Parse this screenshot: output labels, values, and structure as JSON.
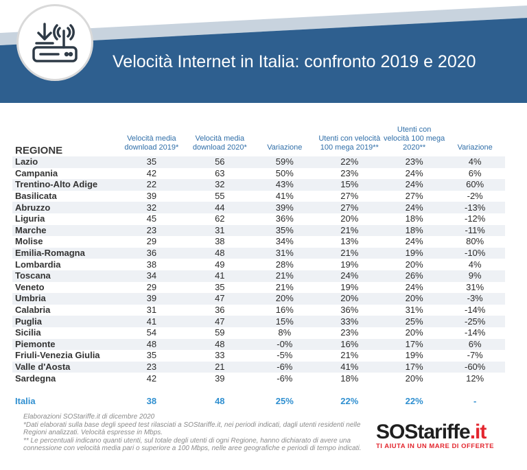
{
  "title": "Velocità Internet in Italia: confronto 2019 e 2020",
  "headers": {
    "region": "REGIONE",
    "dl2019": "Velocità media download 2019*",
    "dl2020": "Velocità media download 2020*",
    "var1": "Variazione",
    "u2019": "Utenti con velocità 100 mega 2019**",
    "u2020": "Utenti con velocità 100 mega 2020**",
    "var2": "Variazione"
  },
  "rows": [
    {
      "region": "Lazio",
      "dl2019": "35",
      "dl2020": "56",
      "var1": "59%",
      "u2019": "22%",
      "u2020": "23%",
      "var2": "4%"
    },
    {
      "region": "Campania",
      "dl2019": "42",
      "dl2020": "63",
      "var1": "50%",
      "u2019": "23%",
      "u2020": "24%",
      "var2": "6%"
    },
    {
      "region": "Trentino-Alto Adige",
      "dl2019": "22",
      "dl2020": "32",
      "var1": "43%",
      "u2019": "15%",
      "u2020": "24%",
      "var2": "60%"
    },
    {
      "region": "Basilicata",
      "dl2019": "39",
      "dl2020": "55",
      "var1": "41%",
      "u2019": "27%",
      "u2020": "27%",
      "var2": "-2%"
    },
    {
      "region": "Abruzzo",
      "dl2019": "32",
      "dl2020": "44",
      "var1": "39%",
      "u2019": "27%",
      "u2020": "24%",
      "var2": "-13%"
    },
    {
      "region": "Liguria",
      "dl2019": "45",
      "dl2020": "62",
      "var1": "36%",
      "u2019": "20%",
      "u2020": "18%",
      "var2": "-12%"
    },
    {
      "region": "Marche",
      "dl2019": "23",
      "dl2020": "31",
      "var1": "35%",
      "u2019": "21%",
      "u2020": "18%",
      "var2": "-11%"
    },
    {
      "region": "Molise",
      "dl2019": "29",
      "dl2020": "38",
      "var1": "34%",
      "u2019": "13%",
      "u2020": "24%",
      "var2": "80%"
    },
    {
      "region": "Emilia-Romagna",
      "dl2019": "36",
      "dl2020": "48",
      "var1": "31%",
      "u2019": "21%",
      "u2020": "19%",
      "var2": "-10%"
    },
    {
      "region": "Lombardia",
      "dl2019": "38",
      "dl2020": "49",
      "var1": "28%",
      "u2019": "19%",
      "u2020": "20%",
      "var2": "4%"
    },
    {
      "region": "Toscana",
      "dl2019": "34",
      "dl2020": "41",
      "var1": "21%",
      "u2019": "24%",
      "u2020": "26%",
      "var2": "9%"
    },
    {
      "region": "Veneto",
      "dl2019": "29",
      "dl2020": "35",
      "var1": "21%",
      "u2019": "19%",
      "u2020": "24%",
      "var2": "31%"
    },
    {
      "region": "Umbria",
      "dl2019": "39",
      "dl2020": "47",
      "var1": "20%",
      "u2019": "20%",
      "u2020": "20%",
      "var2": "-3%"
    },
    {
      "region": "Calabria",
      "dl2019": "31",
      "dl2020": "36",
      "var1": "16%",
      "u2019": "36%",
      "u2020": "31%",
      "var2": "-14%"
    },
    {
      "region": "Puglia",
      "dl2019": "41",
      "dl2020": "47",
      "var1": "15%",
      "u2019": "33%",
      "u2020": "25%",
      "var2": "-25%"
    },
    {
      "region": "Sicilia",
      "dl2019": "54",
      "dl2020": "59",
      "var1": "8%",
      "u2019": "23%",
      "u2020": "20%",
      "var2": "-14%"
    },
    {
      "region": "Piemonte",
      "dl2019": "48",
      "dl2020": "48",
      "var1": "-0%",
      "u2019": "16%",
      "u2020": "17%",
      "var2": "6%"
    },
    {
      "region": "Friuli-Venezia Giulia",
      "dl2019": "35",
      "dl2020": "33",
      "var1": "-5%",
      "u2019": "21%",
      "u2020": "19%",
      "var2": "-7%"
    },
    {
      "region": "Valle d'Aosta",
      "dl2019": "23",
      "dl2020": "21",
      "var1": "-6%",
      "u2019": "41%",
      "u2020": "17%",
      "var2": "-60%"
    },
    {
      "region": "Sardegna",
      "dl2019": "42",
      "dl2020": "39",
      "var1": "-6%",
      "u2019": "18%",
      "u2020": "20%",
      "var2": "12%"
    }
  ],
  "total": {
    "region": "Italia",
    "dl2019": "38",
    "dl2020": "48",
    "var1": "25%",
    "u2019": "22%",
    "u2020": "22%",
    "var2": "-"
  },
  "notes": [
    "Elaborazioni SOStariffe.it di dicembre 2020",
    "*Dati elaborati sulla base degli speed test rilasciati a SOStariffe.it, nei periodi indicati, dagli utenti residenti nelle Regioni analizzati. Velocità espresse in Mbps.",
    "** Le percentuali indicano quanti utenti, sul totale degli utenti di ogni Regione, hanno dichiarato di avere una connessione con velocità media pari o superiore a 100 Mbps, nelle aree geografiche e periodi di tempo indicati."
  ],
  "logo": {
    "main": "SOStariffe",
    "suffix": ".it",
    "tagline": "TI AIUTA IN UN MARE DI OFFERTE"
  },
  "colors": {
    "banner": "#2e5f8f",
    "stripe": "#c8d3de",
    "accent_blue": "#2f8fd0",
    "logo_red": "#e3262e"
  }
}
